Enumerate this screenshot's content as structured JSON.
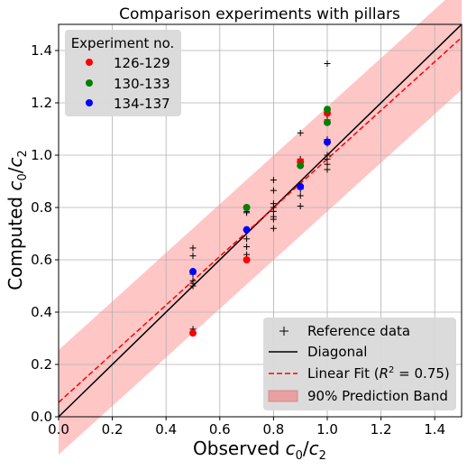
{
  "chart_data": {
    "type": "scatter",
    "title": "Comparison experiments with pillars",
    "xlabel": {
      "main": "Observed ",
      "var_a": "c",
      "sub_a": "0",
      "slash": "/",
      "var_b": "c",
      "sub_b": "2"
    },
    "ylabel": {
      "main": "Computed ",
      "var_a": "c",
      "sub_a": "0",
      "slash": "/",
      "var_b": "c",
      "sub_b": "2"
    },
    "xlim": [
      0.0,
      1.5
    ],
    "ylim": [
      0.0,
      1.5
    ],
    "xticks": [
      "0.0",
      "0.2",
      "0.4",
      "0.6",
      "0.8",
      "1.0",
      "1.2",
      "1.4"
    ],
    "yticks": [
      "0.0",
      "0.2",
      "0.4",
      "0.6",
      "0.8",
      "1.0",
      "1.2",
      "1.4"
    ],
    "grid": true,
    "colors": {
      "red": "#ff0000",
      "green": "#008000",
      "blue": "#0000ff",
      "band": "#ffb3b3",
      "diagonal": "#000000",
      "fit": "#ff0000"
    },
    "experiment_legend": {
      "title": "Experiment no.",
      "placement": "top-left",
      "entries": [
        "126-129",
        "130-133",
        "134-137"
      ]
    },
    "line_legend": {
      "placement": "bottom-right",
      "reference": "Reference data",
      "diagonal": "Diagonal",
      "fit_prefix": "Linear Fit (",
      "fit_var": "R",
      "fit_sup": "2",
      "fit_suffix": " = 0.75)",
      "band": "90% Prediction Band"
    },
    "diagonal": {
      "x": [
        0.0,
        1.5
      ],
      "y": [
        0.0,
        1.5
      ]
    },
    "linear_fit": {
      "intercept": 0.055,
      "slope": 0.93
    },
    "prediction_band_halfwidth": 0.2,
    "reference_data": {
      "x": [
        0.5,
        0.5,
        0.5,
        0.5,
        0.5,
        0.5,
        0.5,
        0.7,
        0.7,
        0.7,
        0.7,
        0.7,
        0.7,
        0.7,
        0.8,
        0.8,
        0.8,
        0.8,
        0.8,
        0.8,
        0.8,
        0.8,
        0.9,
        0.9,
        0.9,
        0.9,
        0.9,
        1.0,
        1.0,
        1.0,
        1.0,
        1.0,
        1.0,
        1.0,
        1.0,
        1.0
      ],
      "y": [
        0.645,
        0.615,
        0.545,
        0.52,
        0.51,
        0.5,
        0.335,
        0.785,
        0.715,
        0.68,
        0.65,
        0.62,
        0.6,
        0.78,
        0.905,
        0.865,
        0.815,
        0.785,
        0.765,
        0.755,
        0.72,
        0.8,
        1.085,
        0.985,
        0.87,
        0.845,
        0.805,
        1.35,
        1.165,
        1.135,
        1.06,
        1.045,
        1.0,
        0.985,
        0.965,
        0.945
      ]
    },
    "series": [
      {
        "name": "126-129",
        "color": "red",
        "x": [
          0.5,
          0.7,
          0.9,
          1.0
        ],
        "y": [
          0.32,
          0.6,
          0.975,
          1.16
        ]
      },
      {
        "name": "130-133",
        "color": "green",
        "x": [
          0.7,
          0.9,
          1.0,
          1.0
        ],
        "y": [
          0.8,
          0.96,
          1.175,
          1.125
        ]
      },
      {
        "name": "134-137",
        "color": "blue",
        "x": [
          0.5,
          0.7,
          0.9,
          1.0
        ],
        "y": [
          0.555,
          0.715,
          0.88,
          1.05
        ]
      }
    ]
  }
}
